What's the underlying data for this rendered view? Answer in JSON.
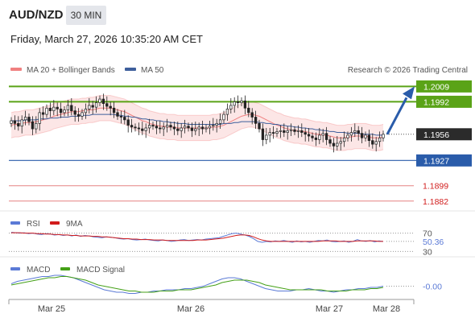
{
  "header": {
    "pair": "AUD/NZD",
    "timeframe": "30 MIN",
    "datetime": "Friday, March 27, 2026 10:35:20 AM CET"
  },
  "legend": {
    "bollinger": "MA 20 + Bollinger Bands",
    "ma50": "MA 50",
    "copyright": "Research © 2026 Trading Central",
    "rsi": "RSI",
    "rsi_ma": "9MA",
    "macd": "MACD",
    "macd_signal": "MACD Signal"
  },
  "colors": {
    "resistance": "#5aa317",
    "support": "#2a5caa",
    "red_level": "#d11c1c",
    "current": "#2b2b2b",
    "bollinger": "#f08080",
    "ma50": "#3e5f9c",
    "rsi": "#5b7ad6",
    "rsi_ma": "#d11c1c",
    "macd": "#5b7ad6",
    "macd_signal": "#44a017",
    "arrow": "#2a5caa"
  },
  "chart_data": [
    {
      "type": "candlestick",
      "x_axis_labels": [
        "Mar 25",
        "Mar 26",
        "Mar 27",
        "Mar 28"
      ],
      "ylim": [
        1.187,
        1.202
      ],
      "levels": [
        {
          "value": 1.2009,
          "label": "1.2009",
          "kind": "resistance"
        },
        {
          "value": 1.1992,
          "label": "1.1992",
          "kind": "resistance"
        },
        {
          "value": 1.1956,
          "label": "1.1956",
          "kind": "current"
        },
        {
          "value": 1.1927,
          "label": "1.1927",
          "kind": "support"
        },
        {
          "value": 1.1899,
          "label": "1.1899",
          "kind": "red"
        },
        {
          "value": 1.1882,
          "label": "1.1882",
          "kind": "red"
        }
      ],
      "close": [
        1.1971,
        1.1968,
        1.1965,
        1.1972,
        1.1975,
        1.197,
        1.1962,
        1.1968,
        1.198,
        1.1978,
        1.1985,
        1.1982,
        1.1986,
        1.1984,
        1.198,
        1.1983,
        1.1988,
        1.1982,
        1.1978,
        1.1976,
        1.198,
        1.1984,
        1.1988,
        1.1986,
        1.1991,
        1.1995,
        1.199,
        1.1987,
        1.1985,
        1.198,
        1.1976,
        1.1975,
        1.1972,
        1.1966,
        1.1964,
        1.1963,
        1.1962,
        1.196,
        1.1963,
        1.1966,
        1.1965,
        1.1963,
        1.1962,
        1.1964,
        1.1966,
        1.1964,
        1.1962,
        1.196,
        1.1963,
        1.1965,
        1.1963,
        1.196,
        1.1962,
        1.1964,
        1.1962,
        1.1963,
        1.1965,
        1.1966,
        1.1968,
        1.1972,
        1.1978,
        1.1984,
        1.1988,
        1.1992,
        1.1991,
        1.1993,
        1.1985,
        1.198,
        1.1975,
        1.1968,
        1.1962,
        1.195,
        1.1955,
        1.1958,
        1.1957,
        1.1959,
        1.196,
        1.1958,
        1.196,
        1.1961,
        1.1959,
        1.196,
        1.1958,
        1.1956,
        1.1954,
        1.1952,
        1.195,
        1.1955,
        1.1957,
        1.195,
        1.1946,
        1.1943,
        1.1946,
        1.1948,
        1.1952,
        1.1955,
        1.1958,
        1.196,
        1.1957,
        1.1952,
        1.1955,
        1.1949,
        1.1945,
        1.1948,
        1.1952,
        1.1956
      ],
      "bollinger_mid": [
        1.1966,
        1.1967,
        1.1967,
        1.1968,
        1.1969,
        1.1969,
        1.1969,
        1.197,
        1.1971,
        1.1972,
        1.1973,
        1.1974,
        1.1976,
        1.1977,
        1.1978,
        1.1979,
        1.198,
        1.1981,
        1.1981,
        1.1981,
        1.1982,
        1.1982,
        1.1983,
        1.1983,
        1.1984,
        1.1985,
        1.1985,
        1.1985,
        1.1985,
        1.1984,
        1.1983,
        1.1982,
        1.1981,
        1.1979,
        1.1977,
        1.1975,
        1.1973,
        1.1971,
        1.197,
        1.1968,
        1.1967,
        1.1966,
        1.1965,
        1.1965,
        1.1964,
        1.1964,
        1.1964,
        1.1963,
        1.1963,
        1.1963,
        1.1963,
        1.1963,
        1.1963,
        1.1963,
        1.1963,
        1.1963,
        1.1963,
        1.1964,
        1.1964,
        1.1965,
        1.1966,
        1.1968,
        1.197,
        1.1972,
        1.1974,
        1.1976,
        1.1977,
        1.1978,
        1.1978,
        1.1977,
        1.1976,
        1.1974,
        1.1972,
        1.197,
        1.1968,
        1.1966,
        1.1965,
        1.1963,
        1.1962,
        1.1961,
        1.196,
        1.196,
        1.1959,
        1.1959,
        1.1958,
        1.1957,
        1.1956,
        1.1956,
        1.1955,
        1.1955,
        1.1954,
        1.1953,
        1.1952,
        1.1952,
        1.1952,
        1.1953,
        1.1953,
        1.1954,
        1.1954,
        1.1954,
        1.1954,
        1.1953,
        1.1952,
        1.1952,
        1.1952,
        1.1953
      ],
      "bollinger_width": 0.0014,
      "ma50": [
        1.1971,
        1.1971,
        1.1971,
        1.1971,
        1.1972,
        1.1972,
        1.1972,
        1.1972,
        1.1973,
        1.1973,
        1.1973,
        1.1974,
        1.1974,
        1.1974,
        1.1975,
        1.1975,
        1.1975,
        1.1976,
        1.1976,
        1.1976,
        1.1977,
        1.1977,
        1.1977,
        1.1978,
        1.1978,
        1.1978,
        1.1978,
        1.1978,
        1.1978,
        1.1978,
        1.1977,
        1.1977,
        1.1976,
        1.1976,
        1.1975,
        1.1975,
        1.1974,
        1.1973,
        1.1973,
        1.1972,
        1.1972,
        1.1971,
        1.1971,
        1.197,
        1.197,
        1.1969,
        1.1969,
        1.1968,
        1.1968,
        1.1968,
        1.1967,
        1.1967,
        1.1967,
        1.1967,
        1.1967,
        1.1967,
        1.1967,
        1.1967,
        1.1967,
        1.1967,
        1.1968,
        1.1968,
        1.1968,
        1.1969,
        1.1969,
        1.197,
        1.197,
        1.197,
        1.197,
        1.197,
        1.1969,
        1.1969,
        1.1968,
        1.1968,
        1.1967,
        1.1967,
        1.1966,
        1.1966,
        1.1965,
        1.1965,
        1.1964,
        1.1964,
        1.1963,
        1.1963,
        1.1962,
        1.1962,
        1.1961,
        1.1961,
        1.196,
        1.196,
        1.1959,
        1.1959,
        1.1958,
        1.1958,
        1.1958,
        1.1957,
        1.1957,
        1.1957,
        1.1957,
        1.1956,
        1.1956,
        1.1956,
        1.1956,
        1.1955,
        1.1955,
        1.1955
      ],
      "forecast_arrow": {
        "from": 1.1956,
        "to": 1.2009
      }
    },
    {
      "type": "line",
      "name": "RSI",
      "ylim": [
        20,
        80
      ],
      "levels": [
        {
          "value": 70,
          "label": "70"
        },
        {
          "value": 30,
          "label": "30"
        }
      ],
      "current_label": "50.36",
      "series": [
        {
          "name": "RSI",
          "values": [
            72,
            71,
            70,
            71,
            69,
            70,
            68,
            67,
            69,
            68,
            66,
            67,
            65,
            66,
            64,
            66,
            63,
            65,
            64,
            62,
            61,
            60,
            62,
            61,
            60,
            58,
            57,
            58,
            56,
            55,
            56,
            57,
            55,
            54,
            53,
            55,
            54,
            52,
            53,
            55,
            56,
            54,
            55,
            56,
            55,
            57,
            58,
            59,
            60,
            63,
            66,
            69,
            70,
            68,
            66,
            63,
            58,
            52,
            50,
            52,
            51,
            53,
            52,
            54,
            52,
            50,
            53,
            51,
            52,
            50,
            52,
            54,
            53,
            55,
            52,
            51,
            52,
            53,
            50,
            52,
            56,
            53,
            52,
            54,
            51,
            53,
            52
          ]
        },
        {
          "name": "9MA",
          "values": [
            71,
            71,
            71,
            70,
            70,
            70,
            69,
            69,
            68,
            68,
            67,
            67,
            66,
            66,
            65,
            65,
            64,
            64,
            64,
            63,
            63,
            62,
            62,
            61,
            60,
            59,
            58,
            58,
            57,
            57,
            56,
            56,
            56,
            55,
            55,
            55,
            54,
            54,
            54,
            54,
            54,
            54,
            54,
            55,
            55,
            55,
            56,
            57,
            58,
            59,
            61,
            63,
            65,
            66,
            66,
            65,
            62,
            58,
            55,
            53,
            52,
            52,
            52,
            52,
            52,
            52,
            52,
            52,
            52,
            52,
            52,
            52,
            53,
            53,
            53,
            53,
            52,
            52,
            52,
            52,
            53,
            53,
            53,
            53,
            53,
            52,
            52
          ]
        }
      ]
    },
    {
      "type": "line",
      "name": "MACD",
      "ylim": [
        -0.0012,
        0.001
      ],
      "current_label": "-0.00",
      "series": [
        {
          "name": "MACD",
          "values": [
            0.0001,
            0.0003,
            0.0004,
            0.0005,
            0.0006,
            0.0007,
            0.0007,
            0.0008,
            0.0008,
            0.0007,
            0.0006,
            0.0004,
            0.0002,
            0.0,
            -0.0002,
            -0.0004,
            -0.0005,
            -0.0006,
            -0.0006,
            -0.0007,
            -0.0007,
            -0.0006,
            -0.0006,
            -0.0005,
            -0.0005,
            -0.0004,
            -0.0004,
            -0.0004,
            -0.0003,
            -0.0003,
            -0.0002,
            -0.0001,
            0.0001,
            0.0003,
            0.0005,
            0.0006,
            0.0006,
            0.0005,
            0.0003,
            0.0001,
            -0.0001,
            -0.0003,
            -0.0004,
            -0.0005,
            -0.0005,
            -0.0005,
            -0.0004,
            -0.0004,
            -0.0003,
            -0.0004,
            -0.0005,
            -0.0005,
            -0.0006,
            -0.0005,
            -0.0004,
            -0.0004,
            -0.0003,
            -0.0003,
            -0.0002,
            -0.0002,
            -0.0001
          ]
        },
        {
          "name": "MACD Signal",
          "values": [
            0.0,
            0.0001,
            0.0002,
            0.0003,
            0.0004,
            0.0005,
            0.0006,
            0.0006,
            0.0007,
            0.0007,
            0.0006,
            0.0005,
            0.0004,
            0.0002,
            0.0,
            -0.0001,
            -0.0002,
            -0.0003,
            -0.0004,
            -0.0005,
            -0.0005,
            -0.0006,
            -0.0006,
            -0.0006,
            -0.0005,
            -0.0005,
            -0.0005,
            -0.0004,
            -0.0004,
            -0.0004,
            -0.0003,
            -0.0002,
            -0.0001,
            0.0,
            0.0002,
            0.0003,
            0.0004,
            0.0004,
            0.0004,
            0.0003,
            0.0002,
            0.0,
            -0.0001,
            -0.0002,
            -0.0003,
            -0.0004,
            -0.0004,
            -0.0004,
            -0.0004,
            -0.0004,
            -0.0004,
            -0.0005,
            -0.0005,
            -0.0005,
            -0.0005,
            -0.0004,
            -0.0004,
            -0.0004,
            -0.0003,
            -0.0003,
            -0.0002
          ]
        }
      ]
    }
  ]
}
